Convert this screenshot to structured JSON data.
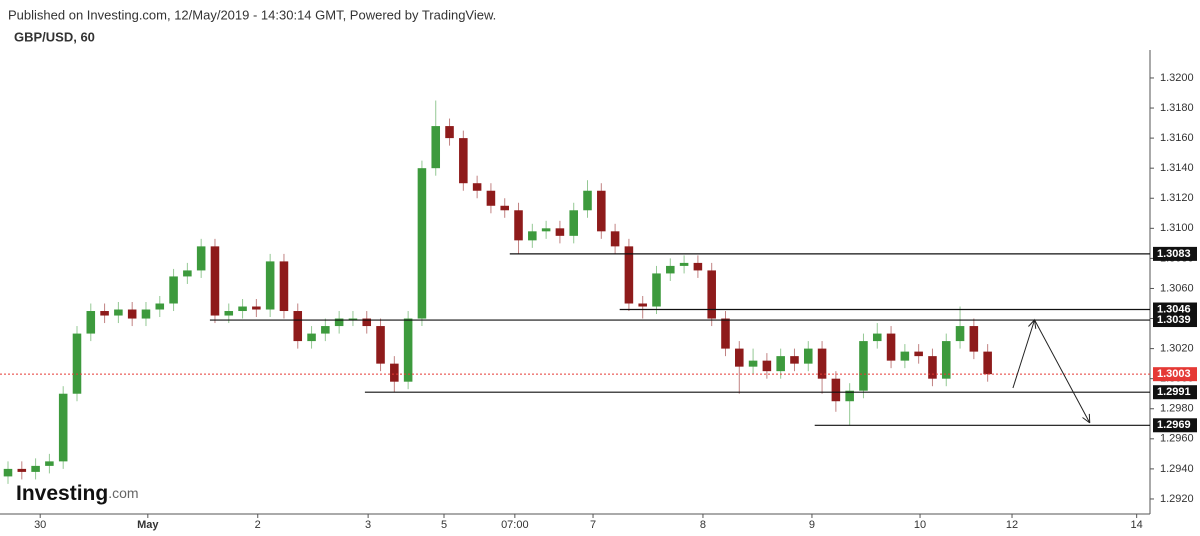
{
  "header": {
    "published": "Published on Investing.com, 12/May/2019 - 14:30:14 GMT, Powered by TradingView.",
    "symbol": "GBP/USD, 60"
  },
  "logo": {
    "brand": "Investing",
    "suffix": ".com"
  },
  "chart_data": {
    "type": "candlestick",
    "up_color": "#3d9a3d",
    "down_color": "#8e1b1b",
    "x": [
      0,
      3,
      6,
      9,
      12,
      15,
      18,
      21,
      24,
      27,
      30,
      33,
      36,
      39,
      42,
      45,
      48,
      51,
      54,
      57,
      60,
      63,
      66,
      69,
      72,
      75,
      78,
      81,
      84,
      87,
      90,
      93,
      96,
      99,
      102,
      105,
      108,
      111,
      114,
      117,
      120,
      123,
      126,
      129,
      132,
      135,
      138,
      141,
      144,
      147,
      150,
      153,
      156,
      159,
      162,
      165,
      168,
      171,
      174,
      177,
      180,
      183,
      186,
      189,
      192,
      195,
      198,
      201,
      204,
      207,
      210,
      213
    ],
    "open": [
      1.2935,
      1.294,
      1.2938,
      1.2942,
      1.2945,
      1.299,
      1.303,
      1.3045,
      1.3042,
      1.3046,
      1.304,
      1.3046,
      1.305,
      1.3068,
      1.3072,
      1.3088,
      1.3042,
      1.3045,
      1.3048,
      1.3046,
      1.3078,
      1.3045,
      1.3025,
      1.303,
      1.3035,
      1.304,
      1.304,
      1.3035,
      1.301,
      1.2998,
      1.304,
      1.314,
      1.3168,
      1.316,
      1.313,
      1.3125,
      1.3115,
      1.3112,
      1.3092,
      1.3098,
      1.31,
      1.3095,
      1.3112,
      1.3125,
      1.3098,
      1.3088,
      1.305,
      1.3048,
      1.307,
      1.3075,
      1.3077,
      1.3072,
      1.304,
      1.302,
      1.3008,
      1.3012,
      1.3005,
      1.3015,
      1.301,
      1.302,
      1.3,
      1.2985,
      1.2992,
      1.3025,
      1.303,
      1.3012,
      1.3018,
      1.3015,
      1.3,
      1.3025,
      1.3035,
      1.3018
    ],
    "high": [
      1.2945,
      1.2945,
      1.2947,
      1.295,
      1.2995,
      1.3035,
      1.305,
      1.305,
      1.3051,
      1.3051,
      1.3051,
      1.3055,
      1.3073,
      1.3077,
      1.3093,
      1.3093,
      1.305,
      1.3053,
      1.3053,
      1.3083,
      1.3083,
      1.305,
      1.3035,
      1.304,
      1.3045,
      1.3045,
      1.3045,
      1.304,
      1.3015,
      1.3045,
      1.3145,
      1.3185,
      1.3173,
      1.3165,
      1.3135,
      1.313,
      1.312,
      1.3117,
      1.3103,
      1.3105,
      1.3105,
      1.3117,
      1.3132,
      1.313,
      1.3103,
      1.3093,
      1.3055,
      1.3075,
      1.308,
      1.3082,
      1.3082,
      1.3077,
      1.3045,
      1.3025,
      1.302,
      1.3017,
      1.302,
      1.302,
      1.3025,
      1.3025,
      1.3005,
      1.2997,
      1.303,
      1.3037,
      1.3035,
      1.3023,
      1.3023,
      1.302,
      1.303,
      1.3048,
      1.304,
      1.3023
    ],
    "low": [
      1.293,
      1.2933,
      1.2933,
      1.2937,
      1.294,
      1.2985,
      1.3025,
      1.3037,
      1.3037,
      1.3035,
      1.3035,
      1.3041,
      1.3045,
      1.3063,
      1.3067,
      1.3037,
      1.3037,
      1.304,
      1.3041,
      1.3041,
      1.304,
      1.302,
      1.302,
      1.3025,
      1.303,
      1.3035,
      1.303,
      1.3005,
      1.2991,
      1.2993,
      1.3035,
      1.3135,
      1.3155,
      1.3125,
      1.312,
      1.311,
      1.3107,
      1.3083,
      1.3087,
      1.3093,
      1.309,
      1.309,
      1.3107,
      1.3093,
      1.3083,
      1.3045,
      1.304,
      1.3043,
      1.3065,
      1.307,
      1.3067,
      1.3035,
      1.3015,
      1.299,
      1.3003,
      1.3,
      1.3,
      1.3005,
      1.3005,
      1.299,
      1.2978,
      1.2969,
      1.2987,
      1.302,
      1.3007,
      1.3007,
      1.301,
      1.2995,
      1.2995,
      1.302,
      1.3013,
      1.2998
    ],
    "close": [
      1.294,
      1.2938,
      1.2942,
      1.2945,
      1.299,
      1.303,
      1.3045,
      1.3042,
      1.3046,
      1.304,
      1.3046,
      1.305,
      1.3068,
      1.3072,
      1.3088,
      1.3042,
      1.3045,
      1.3048,
      1.3046,
      1.3078,
      1.3045,
      1.3025,
      1.303,
      1.3035,
      1.304,
      1.304,
      1.3035,
      1.301,
      1.2998,
      1.304,
      1.314,
      1.3168,
      1.316,
      1.313,
      1.3125,
      1.3115,
      1.3112,
      1.3092,
      1.3098,
      1.31,
      1.3095,
      1.3112,
      1.3125,
      1.3098,
      1.3088,
      1.305,
      1.3048,
      1.307,
      1.3075,
      1.3077,
      1.3072,
      1.304,
      1.302,
      1.3008,
      1.3012,
      1.3005,
      1.3015,
      1.301,
      1.302,
      1.3,
      1.2985,
      1.2992,
      1.3025,
      1.303,
      1.3012,
      1.3018,
      1.3015,
      1.3,
      1.3025,
      1.3035,
      1.3018,
      1.3003
    ],
    "xlim": [
      0,
      248.3
    ],
    "xticks": [
      {
        "value": 7,
        "label": "30"
      },
      {
        "value": 30.4,
        "label": "May"
      },
      {
        "value": 54.3,
        "label": "2"
      },
      {
        "value": 78.3,
        "label": "3"
      },
      {
        "value": 94.8,
        "label": "5"
      },
      {
        "value": 110.2,
        "label": "07:00"
      },
      {
        "value": 127.2,
        "label": "7"
      },
      {
        "value": 151.1,
        "label": "8"
      },
      {
        "value": 174.8,
        "label": "9"
      },
      {
        "value": 198.3,
        "label": "10"
      },
      {
        "value": 218.3,
        "label": "12"
      },
      {
        "value": 245.4,
        "label": "14"
      }
    ],
    "ylim": [
      1.291,
      1.32186
    ],
    "yticks": [
      {
        "value": 1.292,
        "label": "1.2920"
      },
      {
        "value": 1.294,
        "label": "1.2940"
      },
      {
        "value": 1.296,
        "label": "1.2960"
      },
      {
        "value": 1.298,
        "label": "1.2980"
      },
      {
        "value": 1.3,
        "label": "1.3000"
      },
      {
        "value": 1.302,
        "label": "1.3020"
      },
      {
        "value": 1.304,
        "label": "1.3040"
      },
      {
        "value": 1.306,
        "label": "1.3060"
      },
      {
        "value": 1.308,
        "label": "1.3080"
      },
      {
        "value": 1.31,
        "label": "1.3100"
      },
      {
        "value": 1.312,
        "label": "1.3120"
      },
      {
        "value": 1.314,
        "label": "1.3140"
      },
      {
        "value": 1.316,
        "label": "1.3160"
      },
      {
        "value": 1.318,
        "label": "1.3180"
      },
      {
        "value": 1.32,
        "label": "1.3200"
      }
    ],
    "levels": [
      {
        "value": 1.3083,
        "from": 109.1
      },
      {
        "value": 1.3046,
        "from": 133
      },
      {
        "value": 1.3039,
        "from": 43.9
      },
      {
        "value": 1.2991,
        "from": 77.6
      },
      {
        "value": 1.2969,
        "from": 175.4
      }
    ],
    "last_price": 1.3003,
    "last_color": "#e53935",
    "arrow": {
      "x": [
        218.5,
        223.2,
        235.2
      ],
      "y": [
        1.29938,
        1.30391,
        1.29706
      ]
    }
  }
}
